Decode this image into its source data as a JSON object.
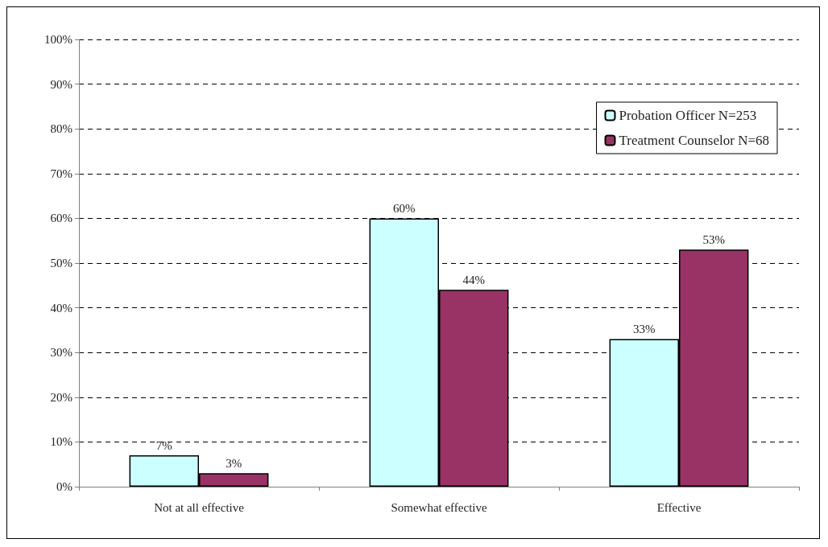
{
  "chart_data": {
    "type": "bar",
    "categories": [
      "Not at all effective",
      "Somewhat effective",
      "Effective"
    ],
    "series": [
      {
        "name": "Probation Officer N=253",
        "color": "#ccffff",
        "values": [
          7,
          60,
          33
        ],
        "value_labels": [
          "7%",
          "60%",
          "33%"
        ]
      },
      {
        "name": "Treatment Counselor N=68",
        "color": "#993366",
        "values": [
          3,
          44,
          53
        ],
        "value_labels": [
          "3%",
          "44%",
          "53%"
        ]
      }
    ],
    "ylim": [
      0,
      100
    ],
    "yticks": [
      {
        "value": 0,
        "label": "0%"
      },
      {
        "value": 10,
        "label": "10%"
      },
      {
        "value": 20,
        "label": "20%"
      },
      {
        "value": 30,
        "label": "30%"
      },
      {
        "value": 40,
        "label": "40%"
      },
      {
        "value": 50,
        "label": "50%"
      },
      {
        "value": 60,
        "label": "60%"
      },
      {
        "value": 70,
        "label": "70%"
      },
      {
        "value": 80,
        "label": "80%"
      },
      {
        "value": 90,
        "label": "90%"
      },
      {
        "value": 100,
        "label": "100%"
      }
    ],
    "grid": "y",
    "legend": "top right"
  }
}
